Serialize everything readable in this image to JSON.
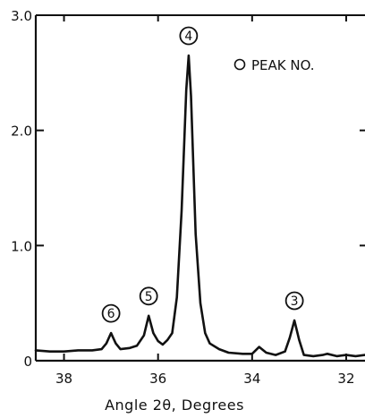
{
  "chart_data": {
    "type": "line",
    "title": "",
    "xlabel": "Angle 2θ, Degrees",
    "ylabel": "",
    "x_reversed": true,
    "xlim": [
      38.6,
      31.6
    ],
    "ylim": [
      0,
      3.0
    ],
    "x_ticks": [
      {
        "value": 38,
        "label": "38"
      },
      {
        "value": 36,
        "label": "36"
      },
      {
        "value": 34,
        "label": "34"
      },
      {
        "value": 32,
        "label": "32"
      }
    ],
    "y_ticks": [
      {
        "value": 0,
        "label": "0"
      },
      {
        "value": 1.0,
        "label": "1.0"
      },
      {
        "value": 2.0,
        "label": "2.0"
      },
      {
        "value": 3.0,
        "label": "3.0"
      }
    ],
    "legend": {
      "symbol": "circle-outline",
      "label": "PEAK NO.",
      "placement": "top-right"
    },
    "peaks": [
      {
        "number": "6",
        "x": 37.0,
        "y": 0.24
      },
      {
        "number": "5",
        "x": 36.2,
        "y": 0.39
      },
      {
        "number": "4",
        "x": 35.35,
        "y": 2.65
      },
      {
        "number": "3",
        "x": 33.1,
        "y": 0.35
      }
    ],
    "series": [
      {
        "color": "#111111",
        "x": [
          38.6,
          38.3,
          38.0,
          37.7,
          37.4,
          37.2,
          37.1,
          37.0,
          36.9,
          36.8,
          36.6,
          36.45,
          36.3,
          36.2,
          36.1,
          36.0,
          35.9,
          35.8,
          35.7,
          35.6,
          35.5,
          35.4,
          35.35,
          35.3,
          35.2,
          35.1,
          35.0,
          34.9,
          34.7,
          34.5,
          34.2,
          34.0,
          33.85,
          33.7,
          33.5,
          33.3,
          33.2,
          33.1,
          33.0,
          32.9,
          32.7,
          32.5,
          32.4,
          32.2,
          32.0,
          31.8,
          31.6
        ],
        "y": [
          0.09,
          0.08,
          0.08,
          0.09,
          0.09,
          0.1,
          0.15,
          0.24,
          0.15,
          0.1,
          0.11,
          0.13,
          0.22,
          0.39,
          0.24,
          0.17,
          0.14,
          0.18,
          0.24,
          0.55,
          1.3,
          2.35,
          2.65,
          2.3,
          1.1,
          0.5,
          0.24,
          0.15,
          0.1,
          0.07,
          0.06,
          0.06,
          0.12,
          0.07,
          0.05,
          0.08,
          0.2,
          0.35,
          0.18,
          0.05,
          0.04,
          0.05,
          0.06,
          0.04,
          0.05,
          0.04,
          0.05
        ]
      }
    ]
  }
}
